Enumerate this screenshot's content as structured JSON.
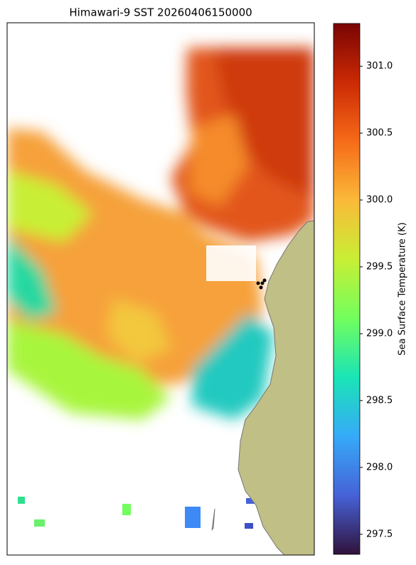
{
  "chart_data": {
    "type": "map",
    "title": "Himawari-9 SST 20260406150000",
    "colorbar_label": "Sea Surface Temperature (K)",
    "colorbar_lim": [
      297.35,
      301.32
    ],
    "colorbar_ticks": [
      {
        "value": 297.5,
        "label": "297.5"
      },
      {
        "value": 298.0,
        "label": "298.0"
      },
      {
        "value": 298.5,
        "label": "298.5"
      },
      {
        "value": 299.0,
        "label": "299.0"
      },
      {
        "value": 299.5,
        "label": "299.5"
      },
      {
        "value": 300.0,
        "label": "300.0"
      },
      {
        "value": 300.5,
        "label": "300.5"
      },
      {
        "value": 301.0,
        "label": "301.0"
      }
    ],
    "colormap": [
      "#30123b",
      "#4662d7",
      "#36aaf9",
      "#1ae4b6",
      "#72fe5e",
      "#c8ef34",
      "#faba39",
      "#f66b19",
      "#cb2a04",
      "#7a0403"
    ]
  }
}
